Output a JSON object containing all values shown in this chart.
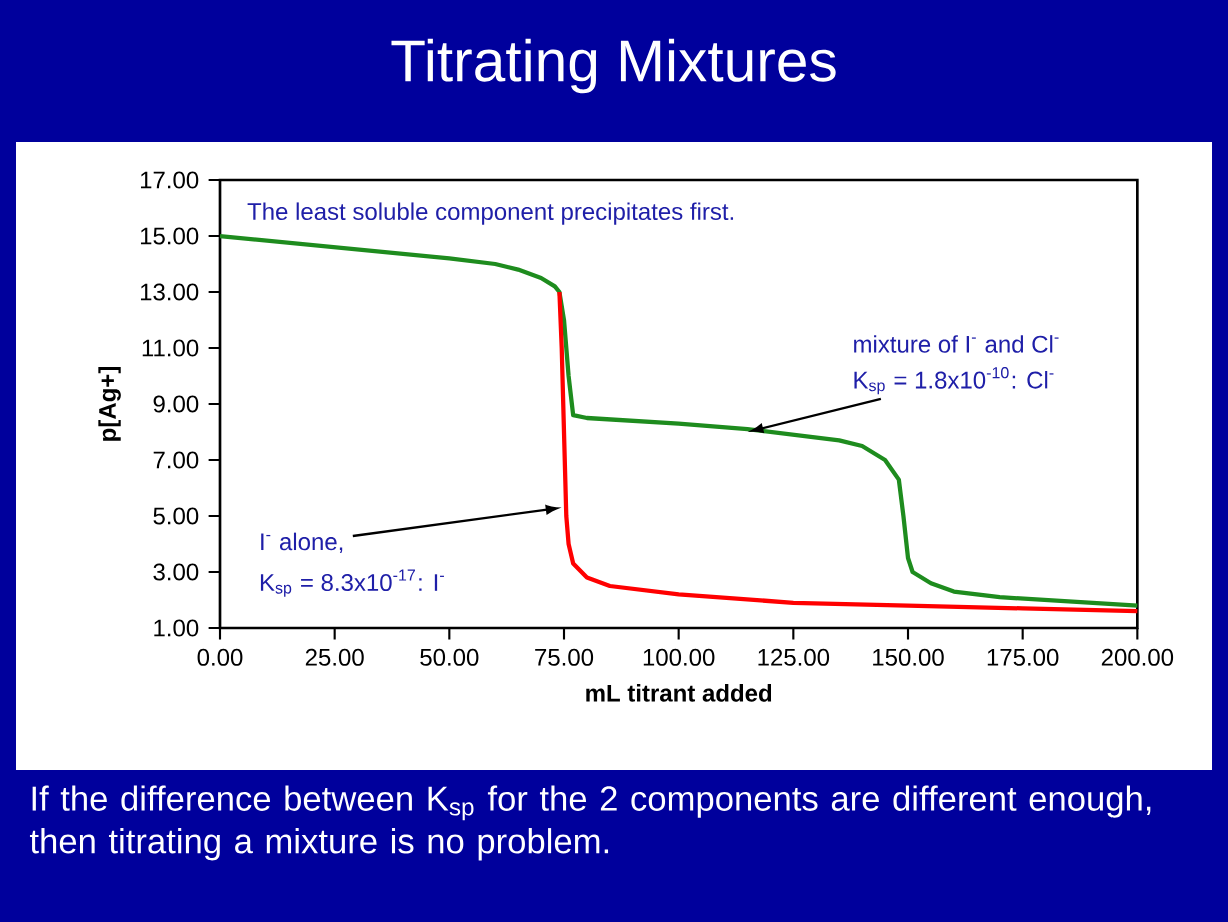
{
  "chart_data": {
    "type": "line",
    "title": "Titrating Mixtures",
    "xlabel": "mL titrant added",
    "ylabel": "p[Ag+]",
    "xlim": [
      0,
      200
    ],
    "ylim": [
      1,
      17
    ],
    "xticks": [
      {
        "value": 0,
        "label": "0.00"
      },
      {
        "value": 25,
        "label": "25.00"
      },
      {
        "value": 50,
        "label": "50.00"
      },
      {
        "value": 75,
        "label": "75.00"
      },
      {
        "value": 100,
        "label": "100.00"
      },
      {
        "value": 125,
        "label": "125.00"
      },
      {
        "value": 150,
        "label": "150.00"
      },
      {
        "value": 175,
        "label": "175.00"
      },
      {
        "value": 200,
        "label": "200.00"
      }
    ],
    "yticks": [
      {
        "value": 1,
        "label": "1.00"
      },
      {
        "value": 3,
        "label": "3.00"
      },
      {
        "value": 5,
        "label": "5.00"
      },
      {
        "value": 7,
        "label": "7.00"
      },
      {
        "value": 9,
        "label": "9.00"
      },
      {
        "value": 11,
        "label": "11.00"
      },
      {
        "value": 13,
        "label": "13.00"
      },
      {
        "value": 15,
        "label": "15.00"
      },
      {
        "value": 17,
        "label": "17.00"
      }
    ],
    "grid": false,
    "marker": "none",
    "line_style": "solid",
    "series": [
      {
        "color": "#1e8c1e",
        "x": [
          0,
          25,
          50,
          60,
          65,
          70,
          73,
          74,
          75,
          76,
          77,
          80,
          100,
          115,
          125,
          135,
          140,
          145,
          148,
          149,
          150,
          151,
          155,
          160,
          170,
          180,
          190,
          200
        ],
        "values": [
          15.0,
          14.6,
          14.2,
          14.0,
          13.8,
          13.5,
          13.2,
          13.0,
          12.0,
          10.0,
          8.6,
          8.5,
          8.3,
          8.1,
          7.9,
          7.7,
          7.5,
          7.0,
          6.3,
          5.0,
          3.5,
          3.0,
          2.6,
          2.3,
          2.1,
          2.0,
          1.9,
          1.8
        ]
      },
      {
        "color": "#ff0000",
        "x": [
          74,
          74.5,
          75,
          75.5,
          76,
          77,
          80,
          85,
          100,
          125,
          150,
          175,
          200
        ],
        "values": [
          13.0,
          11.0,
          8.0,
          5.0,
          4.0,
          3.3,
          2.8,
          2.5,
          2.2,
          1.9,
          1.8,
          1.7,
          1.6
        ]
      }
    ],
    "annotations": [
      "The least soluble component precipitates first.",
      "mixture of I$^{-}$ and Cl$^{-}$",
      {
        "text": "K$_{sp}$ = 1.8x10$^{-10}$: Cl$^{-}$",
        "x": 115,
        "y": 8.0
      },
      {
        "text": "I$^{-}$ alone,",
        "x": 74.5,
        "y": 5.3
      },
      "K$_{sp}$ = 8.3x10$^{-17}$: I$^{-}$",
      "If the difference between K$_{sp}$ for the 2 components are different enough, then titrating a mixture is no problem."
    ]
  }
}
